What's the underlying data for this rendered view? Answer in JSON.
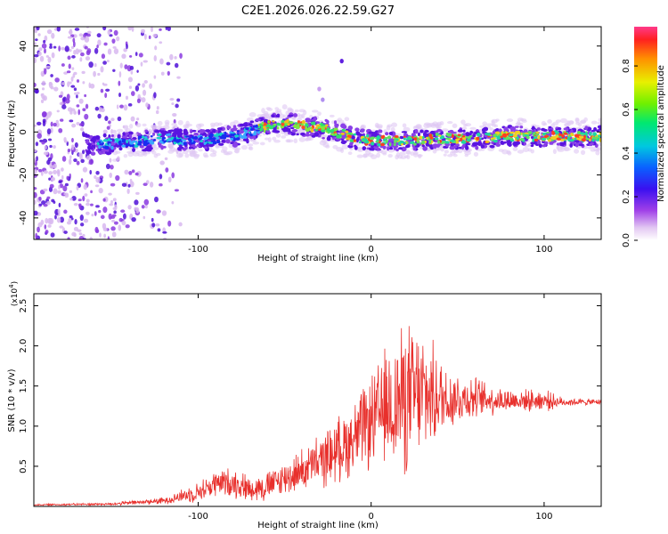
{
  "title": "C2E1.2026.026.22.59.G27",
  "colors": {
    "snr_line": "#e8302c",
    "axis": "#000000"
  },
  "chart_data": [
    {
      "type": "heatmap",
      "name": "spectrogram",
      "xlabel": "Height of straight line (km)",
      "ylabel": "Frequency (Hz)",
      "xlim": [
        -195,
        133
      ],
      "ylim": [
        -50,
        49
      ],
      "xticks": [
        -100,
        0,
        100
      ],
      "yticks": [
        -40,
        -20,
        0,
        20,
        40
      ],
      "xtick_labels": [
        "-100",
        "0",
        "100"
      ],
      "ytick_labels": [
        "-40",
        "-20",
        "0",
        "20",
        "40"
      ],
      "ridge": {
        "x": [
          -160,
          -140,
          -120,
          -100,
          -80,
          -70,
          -60,
          -50,
          -40,
          -30,
          -20,
          -10,
          0,
          20,
          40,
          60,
          80,
          100,
          120,
          133
        ],
        "freq": [
          -6,
          -5,
          -3,
          -4,
          -2,
          0,
          3,
          4,
          3,
          2,
          0,
          -3,
          -4,
          -4,
          -3,
          -3,
          -2,
          -2,
          -2,
          -2
        ]
      },
      "colorbar": {
        "label": "Normalized spectral amplitude",
        "range": [
          0.0,
          0.98
        ],
        "ticks": [
          0.0,
          0.2,
          0.4,
          0.6,
          0.8
        ],
        "tick_labels": [
          "0.0",
          "0.2",
          "0.4",
          "0.6",
          "0.8"
        ]
      }
    },
    {
      "type": "line",
      "name": "snr",
      "xlabel": "Height of straight line (km)",
      "ylabel": "SNR (10 * v/v)",
      "multiplier_label": "(x10",
      "multiplier_exp": "4",
      "xlim": [
        -195,
        133
      ],
      "ylim": [
        0,
        26500
      ],
      "xticks": [
        -100,
        0,
        100
      ],
      "yticks": [
        5000,
        10000,
        15000,
        20000,
        25000
      ],
      "xtick_labels": [
        "-100",
        "0",
        "100"
      ],
      "ytick_labels": [
        "0.5",
        "1.0",
        "1.5",
        "2.0",
        "2.5"
      ],
      "envelope": {
        "x": [
          -195,
          -150,
          -120,
          -100,
          -90,
          -80,
          -70,
          -60,
          -50,
          -40,
          -30,
          -20,
          -10,
          0,
          10,
          20,
          30,
          40,
          50,
          60,
          70,
          80,
          90,
          100,
          110,
          120,
          133
        ],
        "y": [
          200,
          300,
          700,
          1800,
          2800,
          3000,
          2200,
          2500,
          3500,
          4500,
          5500,
          7000,
          8500,
          10500,
          12500,
          13500,
          14000,
          13500,
          13500,
          13500,
          13300,
          13200,
          13200,
          13200,
          13000,
          13000,
          13000
        ],
        "spread": [
          100,
          200,
          500,
          1400,
          2000,
          2200,
          1800,
          2200,
          2500,
          3000,
          3800,
          4500,
          5500,
          6500,
          9000,
          11000,
          9000,
          6000,
          4000,
          3000,
          2200,
          1800,
          1500,
          1600,
          700,
          500,
          400
        ]
      }
    }
  ]
}
